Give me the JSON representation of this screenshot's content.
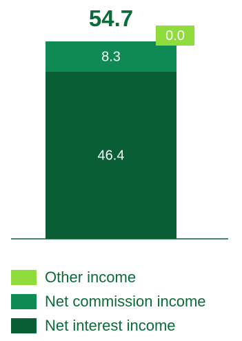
{
  "chart_data": {
    "type": "bar",
    "stacked": true,
    "categories": [
      ""
    ],
    "total_label": "54.7",
    "series": [
      {
        "name": "Net interest income",
        "values": [
          46.4
        ],
        "label": "46.4",
        "color": "#0a5e36"
      },
      {
        "name": "Net commission income",
        "values": [
          8.3
        ],
        "label": "8.3",
        "color": "#0f8a55"
      },
      {
        "name": "Other income",
        "values": [
          0.0
        ],
        "label": "0.0",
        "color": "#8fdc3c"
      }
    ],
    "ylim": [
      0,
      54.7
    ],
    "grid": false,
    "legend_position": "bottom",
    "title": "",
    "xlabel": "",
    "ylabel": ""
  },
  "legend": {
    "items": [
      {
        "label": "Other income",
        "color": "#8fdc3c"
      },
      {
        "label": "Net commission income",
        "color": "#0f8a55"
      },
      {
        "label": "Net interest income",
        "color": "#0a5e36"
      }
    ]
  }
}
